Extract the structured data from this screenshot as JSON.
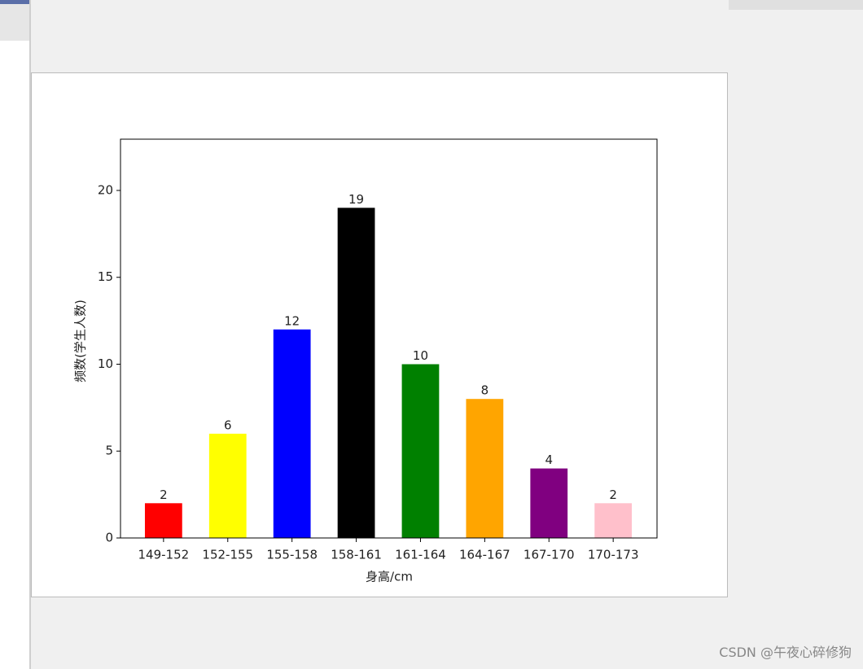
{
  "chart_data": {
    "type": "bar",
    "x_label": "身高/cm",
    "y_label": "频数(学生人数)",
    "categories": [
      "149-152",
      "152-155",
      "155-158",
      "158-161",
      "161-164",
      "164-167",
      "167-170",
      "170-173"
    ],
    "values": [
      2,
      6,
      12,
      19,
      10,
      8,
      4,
      2
    ],
    "colors": [
      "red",
      "yellow",
      "blue",
      "black",
      "green",
      "orange",
      "purple",
      "pink"
    ],
    "ylim": [
      0,
      22.95
    ],
    "yticks": [
      0,
      5,
      10,
      15,
      20
    ],
    "grid": false
  },
  "watermark": "CSDN @午夜心碎修狗"
}
